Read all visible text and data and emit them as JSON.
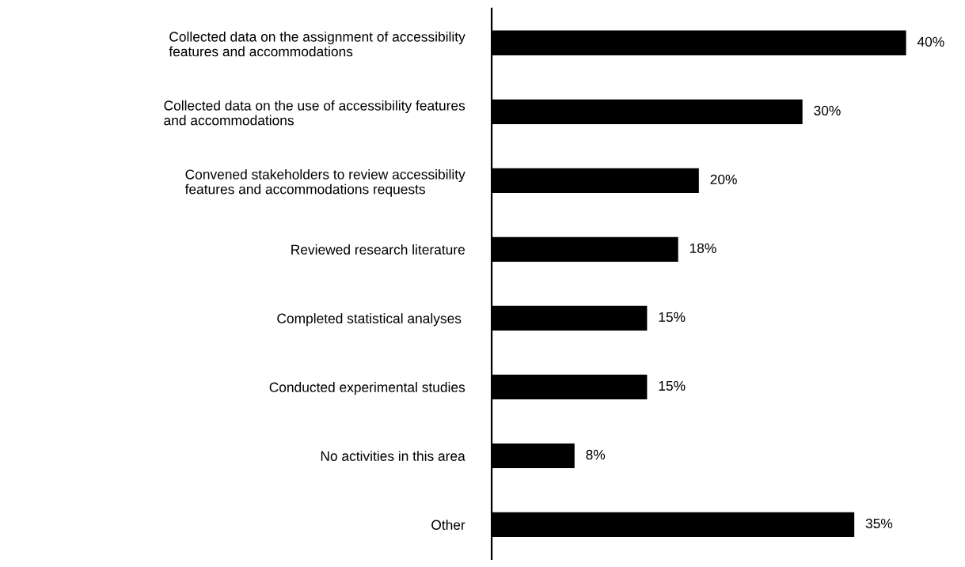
{
  "chart_data": {
    "type": "bar",
    "orientation": "horizontal",
    "categories": [
      "Collected data on the assignment of accessibility\nfeatures and accommodations",
      "Collected data on the use of accessibility features\nand accommodations",
      "Convened stakeholders to review accessibility\nfeatures and accommodations requests",
      "Reviewed research literature",
      "Completed statistical analyses ",
      "Conducted experimental studies",
      "No activities in this area",
      "Other"
    ],
    "values": [
      40,
      30,
      20,
      18,
      15,
      15,
      8,
      35
    ],
    "value_labels": [
      "40%",
      "30%",
      "20%",
      "18%",
      "15%",
      "15%",
      "8%",
      "35%"
    ],
    "color": "#000000",
    "tick_labels": "y",
    "grid": false,
    "legend": false
  }
}
